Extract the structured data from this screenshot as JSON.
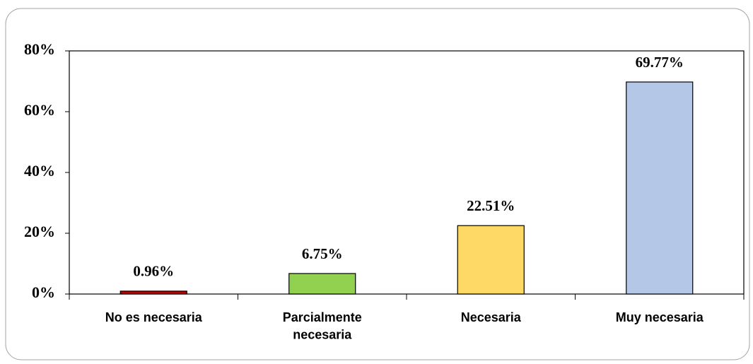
{
  "chart_data": {
    "type": "bar",
    "categories": [
      "No es necesaria",
      "Parcialmente necesaria",
      "Necesaria",
      "Muy necesaria"
    ],
    "values": [
      0.96,
      6.75,
      22.51,
      69.77
    ],
    "value_labels": [
      "0.96%",
      "6.75%",
      "22.51%",
      "69.77%"
    ],
    "colors": [
      "#c00000",
      "#92d050",
      "#ffd966",
      "#b4c7e7"
    ],
    "ylim": [
      0,
      80
    ],
    "yticks": [
      {
        "value": 0,
        "label": "0%"
      },
      {
        "value": 20,
        "label": "20%"
      },
      {
        "value": 40,
        "label": "40%"
      },
      {
        "value": 60,
        "label": "60%"
      },
      {
        "value": 80,
        "label": "80%"
      }
    ],
    "grid": false
  }
}
